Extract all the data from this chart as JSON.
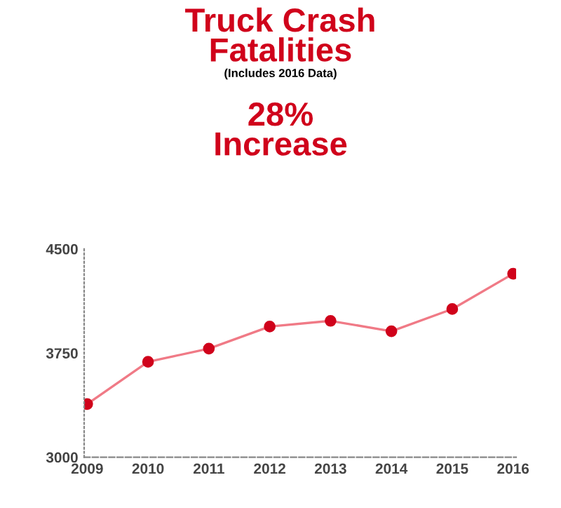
{
  "chart_data": {
    "type": "line",
    "title": "Truck Crash\nFatalities",
    "subtitle": "(Includes 2016 Data)",
    "annotations": [
      "28%\nIncrease"
    ],
    "categories": [
      "2009",
      "2010",
      "2011",
      "2012",
      "2013",
      "2014",
      "2015",
      "2016"
    ],
    "series": [
      {
        "color": "#d0021b",
        "values": [
          3383,
          3687,
          3782,
          3941,
          3982,
          3907,
          4067,
          4321
        ]
      }
    ],
    "ylim": [
      3000,
      4500
    ],
    "yticks": [
      3000,
      3750,
      4500
    ],
    "marker": "circle",
    "line_style": "solid",
    "grid": false,
    "legend": false
  }
}
